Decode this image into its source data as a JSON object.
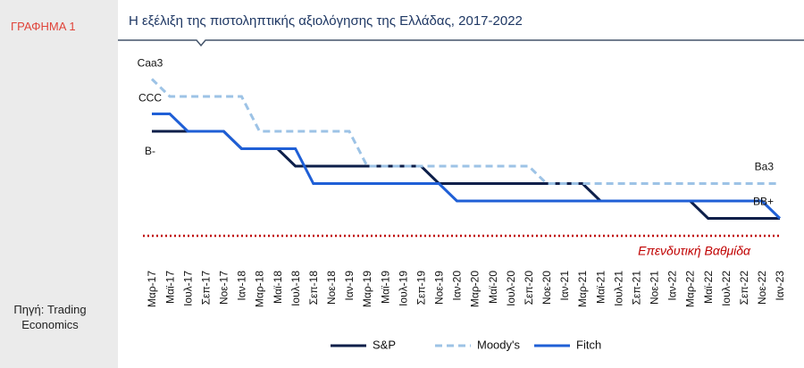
{
  "figure_label": "ΓΡΑΦΗΜΑ 1",
  "source": "Πηγή: Trading Economics",
  "chart_data": {
    "type": "line",
    "title": "Η εξέλιξη της πιστοληπτικής αξιολόγησης της Ελλάδας, 2017-2022",
    "categories": [
      "Μαρ-17",
      "Μαϊ-17",
      "Ιουλ-17",
      "Σεπ-17",
      "Νοε-17",
      "Ιαν-18",
      "Μαρ-18",
      "Μαϊ-18",
      "Ιουλ-18",
      "Σεπ-18",
      "Νοε-18",
      "Ιαν-19",
      "Μαρ-19",
      "Μαϊ-19",
      "Ιουλ-19",
      "Σεπ-19",
      "Νοε-19",
      "Ιαν-20",
      "Μαρ-20",
      "Μαϊ-20",
      "Ιουλ-20",
      "Σεπ-20",
      "Νοε-20",
      "Ιαν-21",
      "Μαρ-21",
      "Μαϊ-21",
      "Ιουλ-21",
      "Σεπ-21",
      "Νοε-21",
      "Ιαν-22",
      "Μαρ-22",
      "Μαϊ-22",
      "Ιουλ-22",
      "Σεπ-22",
      "Νοε-22",
      "Ιαν-23"
    ],
    "series": [
      {
        "name": "S&P",
        "color": "#0d1f4a",
        "dash": false,
        "start_label": "B-",
        "values": [
          16,
          16,
          16,
          16,
          16,
          15,
          15,
          15,
          14,
          14,
          14,
          14,
          14,
          14,
          14,
          14,
          13,
          13,
          13,
          13,
          13,
          13,
          13,
          13,
          13,
          12,
          12,
          12,
          12,
          12,
          12,
          11,
          11,
          11,
          11,
          11
        ]
      },
      {
        "name": "Moody's",
        "color": "#9dc3e6",
        "dash": true,
        "start_label": "Caa3",
        "end_label": "Ba3",
        "values": [
          19,
          18,
          18,
          18,
          18,
          18,
          16,
          16,
          16,
          16,
          16,
          16,
          14,
          14,
          14,
          14,
          14,
          14,
          14,
          14,
          14,
          14,
          13,
          13,
          13,
          13,
          13,
          13,
          13,
          13,
          13,
          13,
          13,
          13,
          13,
          13
        ]
      },
      {
        "name": "Fitch",
        "color": "#1f5fd6",
        "dash": false,
        "start_label": "CCC",
        "end_label": "BB+",
        "values": [
          17,
          17,
          16,
          16,
          16,
          15,
          15,
          15,
          15,
          13,
          13,
          13,
          13,
          13,
          13,
          13,
          13,
          12,
          12,
          12,
          12,
          12,
          12,
          12,
          12,
          12,
          12,
          12,
          12,
          12,
          12,
          12,
          12,
          12,
          12,
          11
        ]
      }
    ],
    "ylim": [
      9,
      20
    ],
    "threshold": {
      "value": 10,
      "label": "Επενδυτική Βαθμίδα",
      "color": "#c00000"
    },
    "legend": "bottom"
  }
}
